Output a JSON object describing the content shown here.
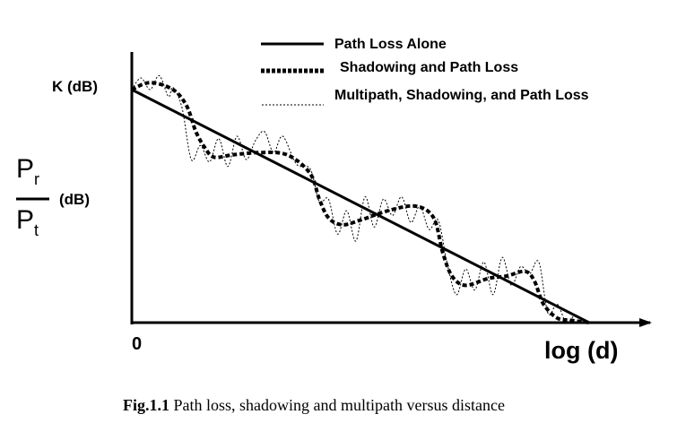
{
  "chart_data": {
    "type": "line",
    "title": "",
    "xlabel": "log (d)",
    "ylabel_numerator": "P",
    "ylabel_numerator_sub": "r",
    "ylabel_denominator": "P",
    "ylabel_denominator_sub": "t",
    "ylabel_unit": "(dB)",
    "origin_label": "0",
    "intercept_label": "K (dB)",
    "xlim": [
      0,
      10
    ],
    "ylim": [
      0,
      10
    ],
    "grid": false,
    "legend_position": "top-right",
    "series": [
      {
        "name": "Path Loss Alone",
        "style": "solid",
        "x": [
          0,
          10
        ],
        "y": [
          10,
          0
        ]
      },
      {
        "name": "Shadowing and Path Loss",
        "style": "dashed",
        "x": [
          0.0,
          0.4,
          0.9,
          1.2,
          1.4,
          1.6,
          1.8,
          2.2,
          2.8,
          3.4,
          3.9,
          4.1,
          4.3,
          4.6,
          5.0,
          5.6,
          6.2,
          6.6,
          6.8,
          7.0,
          7.3,
          7.8,
          8.2,
          8.6,
          8.8,
          9.0,
          9.3,
          9.6,
          10.0
        ],
        "y": [
          10.0,
          10.3,
          10.0,
          9.3,
          8.2,
          7.5,
          7.1,
          7.2,
          7.3,
          7.2,
          6.4,
          5.3,
          4.5,
          4.2,
          4.4,
          4.8,
          5.0,
          4.5,
          3.0,
          2.0,
          1.6,
          1.9,
          2.0,
          2.2,
          1.8,
          0.8,
          0.2,
          0.1,
          0.0
        ]
      },
      {
        "name": "Multipath, Shadowing, and Path Loss",
        "style": "dotted",
        "x": [
          0.0,
          0.2,
          0.4,
          0.6,
          0.8,
          0.9,
          1.1,
          1.3,
          1.5,
          1.7,
          1.9,
          2.1,
          2.3,
          2.5,
          2.7,
          2.9,
          3.1,
          3.3,
          3.6,
          3.9,
          4.1,
          4.3,
          4.5,
          4.7,
          4.9,
          5.1,
          5.3,
          5.5,
          5.7,
          5.9,
          6.1,
          6.3,
          6.5,
          6.7,
          6.9,
          7.1,
          7.3,
          7.5,
          7.7,
          7.9,
          8.1,
          8.3,
          8.5,
          8.7,
          8.9,
          9.1,
          9.3,
          9.5,
          9.7,
          10.0
        ],
        "y": [
          10.0,
          10.5,
          10.0,
          10.6,
          9.7,
          10.1,
          9.2,
          7.0,
          7.6,
          6.9,
          7.9,
          6.7,
          8.0,
          7.0,
          7.8,
          8.2,
          7.3,
          8.0,
          6.8,
          6.6,
          5.2,
          5.3,
          3.8,
          4.8,
          3.5,
          5.4,
          4.1,
          5.3,
          4.6,
          5.4,
          4.3,
          5.0,
          4.0,
          4.4,
          2.5,
          1.2,
          2.3,
          1.4,
          2.6,
          1.2,
          2.8,
          1.6,
          2.4,
          2.1,
          2.6,
          0.4,
          0.8,
          0.0,
          0.3,
          0.0
        ]
      }
    ]
  },
  "caption": {
    "label": "Fig.1.1",
    "text": " Path loss, shadowing and multipath versus distance"
  }
}
